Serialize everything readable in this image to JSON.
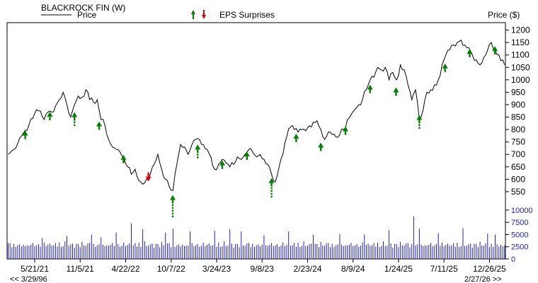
{
  "chart_data": {
    "type": "line",
    "title": "BLACKROCK FIN (W)",
    "legend": {
      "price": "Price",
      "eps": "EPS Surprises"
    },
    "ylabel": "Price ($)",
    "ylim": [
      510,
      1230
    ],
    "yticks": [
      550,
      600,
      650,
      700,
      750,
      800,
      850,
      900,
      950,
      1000,
      1050,
      1100,
      1150,
      1200
    ],
    "xlim": [
      "2021-02-08",
      "2026-02-23"
    ],
    "xticks": [
      {
        "date": "2021-05-21",
        "label": "5/21/21"
      },
      {
        "date": "2021-11-05",
        "label": "11/5/21"
      },
      {
        "date": "2022-04-22",
        "label": "4/22/22"
      },
      {
        "date": "2022-10-07",
        "label": "10/7/22"
      },
      {
        "date": "2023-03-24",
        "label": "3/24/23"
      },
      {
        "date": "2023-09-08",
        "label": "9/8/23"
      },
      {
        "date": "2024-02-23",
        "label": "2/23/24"
      },
      {
        "date": "2024-08-09",
        "label": "8/9/24"
      },
      {
        "date": "2025-01-24",
        "label": "1/24/25"
      },
      {
        "date": "2025-07-11",
        "label": "7/11/25"
      },
      {
        "date": "2025-12-26",
        "label": "12/26/25"
      }
    ],
    "nav": {
      "prev": "<< 3/29/96",
      "next": "2/27/26 >>"
    },
    "price_series": [
      [
        "2021-02-12",
        700
      ],
      [
        "2021-03-05",
        720
      ],
      [
        "2021-03-26",
        765
      ],
      [
        "2021-04-09",
        785
      ],
      [
        "2021-04-30",
        820
      ],
      [
        "2021-05-14",
        845
      ],
      [
        "2021-05-28",
        880
      ],
      [
        "2021-06-11",
        875
      ],
      [
        "2021-06-25",
        840
      ],
      [
        "2021-07-09",
        870
      ],
      [
        "2021-07-23",
        870
      ],
      [
        "2021-08-06",
        895
      ],
      [
        "2021-08-20",
        920
      ],
      [
        "2021-09-03",
        950
      ],
      [
        "2021-09-17",
        900
      ],
      [
        "2021-10-01",
        850
      ],
      [
        "2021-10-15",
        900
      ],
      [
        "2021-10-29",
        935
      ],
      [
        "2021-11-12",
        930
      ],
      [
        "2021-11-26",
        960
      ],
      [
        "2021-12-10",
        920
      ],
      [
        "2021-12-24",
        910
      ],
      [
        "2022-01-07",
        920
      ],
      [
        "2022-01-21",
        840
      ],
      [
        "2022-02-04",
        820
      ],
      [
        "2022-02-18",
        760
      ],
      [
        "2022-03-04",
        730
      ],
      [
        "2022-03-18",
        720
      ],
      [
        "2022-04-01",
        710
      ],
      [
        "2022-04-15",
        690
      ],
      [
        "2022-04-29",
        650
      ],
      [
        "2022-05-13",
        620
      ],
      [
        "2022-05-27",
        640
      ],
      [
        "2022-06-10",
        595
      ],
      [
        "2022-06-24",
        580
      ],
      [
        "2022-07-08",
        600
      ],
      [
        "2022-07-22",
        620
      ],
      [
        "2022-08-05",
        660
      ],
      [
        "2022-08-19",
        700
      ],
      [
        "2022-09-02",
        640
      ],
      [
        "2022-09-16",
        600
      ],
      [
        "2022-09-30",
        570
      ],
      [
        "2022-10-14",
        555
      ],
      [
        "2022-10-28",
        660
      ],
      [
        "2022-11-11",
        740
      ],
      [
        "2022-11-25",
        730
      ],
      [
        "2022-12-09",
        700
      ],
      [
        "2022-12-23",
        740
      ],
      [
        "2023-01-06",
        760
      ],
      [
        "2023-01-20",
        760
      ],
      [
        "2023-02-03",
        740
      ],
      [
        "2023-02-17",
        720
      ],
      [
        "2023-03-03",
        690
      ],
      [
        "2023-03-17",
        640
      ],
      [
        "2023-03-31",
        660
      ],
      [
        "2023-04-14",
        680
      ],
      [
        "2023-04-28",
        665
      ],
      [
        "2023-05-12",
        650
      ],
      [
        "2023-05-26",
        660
      ],
      [
        "2023-06-09",
        690
      ],
      [
        "2023-06-23",
        680
      ],
      [
        "2023-07-07",
        700
      ],
      [
        "2023-07-21",
        720
      ],
      [
        "2023-08-04",
        710
      ],
      [
        "2023-08-18",
        690
      ],
      [
        "2023-09-01",
        700
      ],
      [
        "2023-09-15",
        680
      ],
      [
        "2023-09-29",
        660
      ],
      [
        "2023-10-13",
        620
      ],
      [
        "2023-10-27",
        590
      ],
      [
        "2023-11-10",
        650
      ],
      [
        "2023-11-24",
        700
      ],
      [
        "2023-12-08",
        770
      ],
      [
        "2023-12-22",
        810
      ],
      [
        "2024-01-05",
        800
      ],
      [
        "2024-01-19",
        790
      ],
      [
        "2024-02-02",
        800
      ],
      [
        "2024-02-16",
        795
      ],
      [
        "2024-03-01",
        815
      ],
      [
        "2024-03-15",
        830
      ],
      [
        "2024-03-29",
        835
      ],
      [
        "2024-04-12",
        800
      ],
      [
        "2024-04-26",
        760
      ],
      [
        "2024-05-10",
        790
      ],
      [
        "2024-05-24",
        780
      ],
      [
        "2024-06-07",
        770
      ],
      [
        "2024-06-21",
        780
      ],
      [
        "2024-07-05",
        800
      ],
      [
        "2024-07-19",
        840
      ],
      [
        "2024-08-02",
        860
      ],
      [
        "2024-08-16",
        880
      ],
      [
        "2024-08-30",
        900
      ],
      [
        "2024-09-13",
        920
      ],
      [
        "2024-09-27",
        960
      ],
      [
        "2024-10-11",
        1000
      ],
      [
        "2024-10-25",
        1010
      ],
      [
        "2024-11-08",
        1050
      ],
      [
        "2024-11-22",
        1040
      ],
      [
        "2024-12-06",
        1050
      ],
      [
        "2024-12-20",
        1000
      ],
      [
        "2025-01-03",
        1030
      ],
      [
        "2025-01-17",
        1000
      ],
      [
        "2025-01-31",
        1060
      ],
      [
        "2025-02-14",
        1040
      ],
      [
        "2025-02-28",
        980
      ],
      [
        "2025-03-14",
        920
      ],
      [
        "2025-03-28",
        960
      ],
      [
        "2025-04-11",
        840
      ],
      [
        "2025-04-25",
        880
      ],
      [
        "2025-05-09",
        950
      ],
      [
        "2025-05-23",
        960
      ],
      [
        "2025-06-06",
        980
      ],
      [
        "2025-06-20",
        1000
      ],
      [
        "2025-07-04",
        1060
      ],
      [
        "2025-07-18",
        1100
      ],
      [
        "2025-08-01",
        1120
      ],
      [
        "2025-08-15",
        1140
      ],
      [
        "2025-08-29",
        1150
      ],
      [
        "2025-09-12",
        1160
      ],
      [
        "2025-09-26",
        1140
      ],
      [
        "2025-10-10",
        1130
      ],
      [
        "2025-10-24",
        1100
      ],
      [
        "2025-11-07",
        1080
      ],
      [
        "2025-11-21",
        1060
      ],
      [
        "2025-12-05",
        1090
      ],
      [
        "2025-12-19",
        1120
      ],
      [
        "2026-01-02",
        1150
      ],
      [
        "2026-01-16",
        1120
      ],
      [
        "2026-01-30",
        1100
      ],
      [
        "2026-02-13",
        1080
      ],
      [
        "2026-02-20",
        1060
      ]
    ],
    "eps_surprises": [
      {
        "date": "2021-04-16",
        "price": 790,
        "dir": "up",
        "dashes": 0
      },
      {
        "date": "2021-07-16",
        "price": 866,
        "dir": "up",
        "dashes": 0
      },
      {
        "date": "2021-10-15",
        "price": 864,
        "dir": "up",
        "dashes": 2
      },
      {
        "date": "2022-01-14",
        "price": 827,
        "dir": "up",
        "dashes": 0
      },
      {
        "date": "2022-04-14",
        "price": 693,
        "dir": "up",
        "dashes": 0
      },
      {
        "date": "2022-07-15",
        "price": 605,
        "dir": "down",
        "dashes": 0
      },
      {
        "date": "2022-10-13",
        "price": 531,
        "dir": "up",
        "dashes": 5
      },
      {
        "date": "2023-01-13",
        "price": 734,
        "dir": "up",
        "dashes": 2
      },
      {
        "date": "2023-04-14",
        "price": 670,
        "dir": "up",
        "dashes": 0
      },
      {
        "date": "2023-07-14",
        "price": 706,
        "dir": "up",
        "dashes": 0
      },
      {
        "date": "2023-10-13",
        "price": 599,
        "dir": "up",
        "dashes": 4
      },
      {
        "date": "2024-01-12",
        "price": 778,
        "dir": "up",
        "dashes": 0
      },
      {
        "date": "2024-04-12",
        "price": 742,
        "dir": "up",
        "dashes": 0
      },
      {
        "date": "2024-07-12",
        "price": 807,
        "dir": "up",
        "dashes": 0
      },
      {
        "date": "2024-10-11",
        "price": 975,
        "dir": "up",
        "dashes": 0
      },
      {
        "date": "2025-01-15",
        "price": 964,
        "dir": "up",
        "dashes": 0
      },
      {
        "date": "2025-04-11",
        "price": 853,
        "dir": "up",
        "dashes": 2
      },
      {
        "date": "2025-07-15",
        "price": 1060,
        "dir": "up",
        "dashes": 0
      },
      {
        "date": "2025-10-14",
        "price": 1119,
        "dir": "up",
        "dashes": 0
      },
      {
        "date": "2026-01-15",
        "price": 1130,
        "dir": "up",
        "dashes": 0
      }
    ],
    "volume": {
      "ylim": [
        0,
        11000
      ],
      "yticks": [
        0,
        2500,
        5000,
        7500,
        10000
      ],
      "base": [
        3200,
        3500,
        2900,
        3100,
        2700,
        3300,
        3000,
        2800,
        3400,
        2600,
        3000,
        3200,
        2900,
        3500,
        3100,
        2800,
        3300,
        3000,
        2700,
        3600,
        3100,
        2900,
        3400,
        3200,
        2800,
        3500,
        3000,
        3300,
        2700,
        3100,
        3600,
        2900,
        3200,
        3000,
        3400,
        2800,
        3100,
        3300,
        2900,
        3500,
        3000,
        3200
      ],
      "spikes": [
        [
          "2021-06-18",
          4300
        ],
        [
          "2021-09-17",
          4700
        ],
        [
          "2021-12-17",
          5000
        ],
        [
          "2022-01-21",
          4400
        ],
        [
          "2022-03-18",
          5400
        ],
        [
          "2022-05-13",
          7300
        ],
        [
          "2022-06-24",
          6100
        ],
        [
          "2022-09-16",
          5400
        ],
        [
          "2022-10-14",
          6200
        ],
        [
          "2022-12-16",
          5600
        ],
        [
          "2023-03-17",
          5800
        ],
        [
          "2023-05-12",
          6100
        ],
        [
          "2023-06-23",
          5600
        ],
        [
          "2023-09-15",
          4800
        ],
        [
          "2023-12-15",
          5600
        ],
        [
          "2024-03-15",
          4900
        ],
        [
          "2024-06-21",
          5100
        ],
        [
          "2024-09-20",
          5000
        ],
        [
          "2024-12-20",
          5900
        ],
        [
          "2025-03-21",
          8700
        ],
        [
          "2025-04-11",
          6200
        ],
        [
          "2025-06-20",
          5300
        ],
        [
          "2025-09-19",
          6300
        ],
        [
          "2025-12-19",
          5200
        ],
        [
          "2026-01-16",
          5000
        ]
      ]
    },
    "colors": {
      "line": "#000000",
      "eps_up": "#008000",
      "eps_down": "#e00000",
      "volume": "#1f1fcf",
      "axis": "#000000",
      "grid": "#e0e0e0"
    }
  }
}
